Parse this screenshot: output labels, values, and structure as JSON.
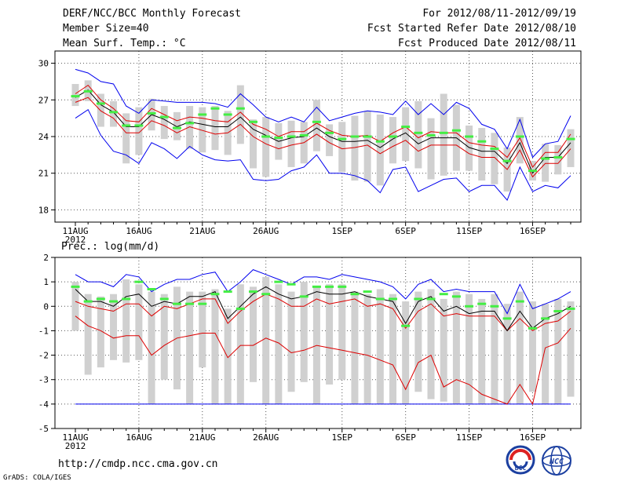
{
  "header": {
    "title": "DERF/NCC/BCC Monthly Forecast",
    "member_size": "Member Size=40",
    "variable": "Mean Surf. Temp.: °C",
    "period": "For 2012/08/11-2012/09/19",
    "started": "Fcst Started Refer Date 2012/08/10",
    "produced": "Fcst Produced Date 2012/08/11"
  },
  "footer": {
    "url": "http://cmdp.ncc.cma.gov.cn",
    "credit": "GrADS: COLA/IGES",
    "logo_bcc": "BCC",
    "logo_ncc": "NCC"
  },
  "colors": {
    "box": "#d0d0d0",
    "median": "#44ee44",
    "mean": "#000000",
    "envelope": "#0000ee",
    "spread": "#dd0000",
    "grid": "#555555"
  },
  "chart_data": [
    {
      "type": "line",
      "title": "Mean Surf. Temp.: °C",
      "ylabel": "°C",
      "ylim": [
        17,
        31
      ],
      "yticks": [
        18,
        21,
        24,
        27,
        30
      ],
      "xticks": [
        {
          "label": "11AUG",
          "day": 0
        },
        {
          "label": "16AUG",
          "day": 5
        },
        {
          "label": "21AUG",
          "day": 10
        },
        {
          "label": "26AUG",
          "day": 15
        },
        {
          "label": "1SEP",
          "day": 21
        },
        {
          "label": "6SEP",
          "day": 26
        },
        {
          "label": "11SEP",
          "day": 31
        },
        {
          "label": "16SEP",
          "day": 36
        }
      ],
      "year_label": "2012",
      "x": [
        0,
        1,
        2,
        3,
        4,
        5,
        6,
        7,
        8,
        9,
        10,
        11,
        12,
        13,
        14,
        15,
        16,
        17,
        18,
        19,
        20,
        21,
        22,
        23,
        24,
        25,
        26,
        27,
        28,
        29,
        30,
        31,
        32,
        33,
        34,
        35,
        36,
        37,
        38,
        39
      ],
      "series": [
        {
          "name": "mean",
          "values": [
            27.2,
            27.8,
            26.6,
            26.0,
            24.8,
            24.8,
            25.8,
            25.4,
            24.8,
            25.2,
            25.0,
            24.8,
            24.8,
            25.6,
            24.6,
            24.1,
            23.6,
            23.9,
            24.0,
            24.7,
            24.0,
            23.6,
            23.6,
            23.7,
            23.1,
            23.8,
            24.3,
            23.4,
            23.9,
            23.9,
            23.9,
            23.1,
            22.8,
            22.8,
            21.8,
            23.5,
            21.0,
            22.3,
            22.3,
            23.5
          ]
        },
        {
          "name": "ensemble-max",
          "values": [
            29.5,
            29.2,
            28.5,
            28.3,
            26.5,
            25.9,
            27.0,
            26.9,
            26.8,
            26.8,
            26.8,
            26.7,
            26.4,
            27.5,
            26.6,
            25.6,
            25.2,
            25.6,
            25.2,
            26.4,
            25.3,
            25.6,
            25.9,
            26.1,
            26.0,
            25.8,
            26.9,
            25.8,
            26.7,
            25.8,
            26.8,
            26.3,
            25.0,
            24.6,
            23.0,
            25.4,
            22.3,
            23.4,
            23.6,
            25.7
          ]
        },
        {
          "name": "ensemble-min",
          "values": [
            25.5,
            26.2,
            24.1,
            22.8,
            22.5,
            21.8,
            23.5,
            23.0,
            22.2,
            23.2,
            22.5,
            22.1,
            22.0,
            22.1,
            20.5,
            20.4,
            20.5,
            21.2,
            21.5,
            22.5,
            21.0,
            21.0,
            20.8,
            20.4,
            19.4,
            21.3,
            21.5,
            19.5,
            20.0,
            20.5,
            20.6,
            19.5,
            20.0,
            20.0,
            18.8,
            21.5,
            19.5,
            20.0,
            19.8,
            20.8
          ]
        },
        {
          "name": "mean-plus-sd",
          "values": [
            27.5,
            28.2,
            27.0,
            26.3,
            25.3,
            25.2,
            26.3,
            25.8,
            25.3,
            25.6,
            25.5,
            25.3,
            25.2,
            26.0,
            25.0,
            24.6,
            24.0,
            24.4,
            24.4,
            25.1,
            24.5,
            24.1,
            24.0,
            24.1,
            23.6,
            24.3,
            24.8,
            23.9,
            24.4,
            24.3,
            24.3,
            23.5,
            23.3,
            23.2,
            22.3,
            23.9,
            21.5,
            22.7,
            22.7,
            24.2
          ]
        },
        {
          "name": "mean-minus-sd",
          "values": [
            26.8,
            27.2,
            26.1,
            25.5,
            24.3,
            24.3,
            25.3,
            24.9,
            24.3,
            24.8,
            24.5,
            24.2,
            24.3,
            25.0,
            24.0,
            23.4,
            23.0,
            23.3,
            23.5,
            24.2,
            23.5,
            23.0,
            23.1,
            23.3,
            22.6,
            23.2,
            23.7,
            22.8,
            23.3,
            23.3,
            23.3,
            22.6,
            22.3,
            22.3,
            21.3,
            22.9,
            20.7,
            21.8,
            21.8,
            23.0
          ]
        },
        {
          "name": "median",
          "values": [
            27.3,
            27.7,
            26.7,
            26.0,
            24.9,
            24.9,
            25.9,
            25.6,
            24.7,
            25.1,
            25.8,
            26.3,
            25.8,
            26.3,
            25.2,
            24.0,
            23.9,
            24.0,
            24.1,
            25.2,
            24.3,
            23.8,
            24.0,
            24.0,
            23.6,
            24.0,
            24.8,
            24.3,
            24.1,
            24.3,
            24.5,
            24.0,
            23.6,
            23.0,
            22.0,
            24.0,
            21.2,
            22.2,
            22.3,
            23.8
          ]
        },
        {
          "name": "box-top",
          "values": [
            28.3,
            28.6,
            27.5,
            26.9,
            25.9,
            26.4,
            27.1,
            26.5,
            26.0,
            26.5,
            26.4,
            26.5,
            26.1,
            28.2,
            25.4,
            25.6,
            25.1,
            25.3,
            25.2,
            27.0,
            25.0,
            25.2,
            25.7,
            26.1,
            25.8,
            25.6,
            26.4,
            26.9,
            25.5,
            27.5,
            26.6,
            24.9,
            24.7,
            24.3,
            23.1,
            25.6,
            22.0,
            23.4,
            23.3,
            24.6
          ]
        },
        {
          "name": "box-bottom",
          "values": [
            26.5,
            26.9,
            24.8,
            24.8,
            21.8,
            22.5,
            24.5,
            23.8,
            23.7,
            23.0,
            22.7,
            22.9,
            22.5,
            23.4,
            21.4,
            20.7,
            22.1,
            21.5,
            21.8,
            22.8,
            22.4,
            21.1,
            20.4,
            20.3,
            20.0,
            21.8,
            22.0,
            21.4,
            20.5,
            20.8,
            21.2,
            21.2,
            20.4,
            20.1,
            19.5,
            21.8,
            20.4,
            20.3,
            20.9,
            21.5
          ]
        }
      ]
    },
    {
      "type": "line",
      "title": "Prec.: log(mm/d)",
      "ylabel": "log(mm/d)",
      "ylim": [
        -5,
        2
      ],
      "yticks": [
        -5,
        -4,
        -3,
        -2,
        -1,
        0,
        1,
        2
      ],
      "xticks": [
        {
          "label": "11AUG",
          "day": 0
        },
        {
          "label": "16AUG",
          "day": 5
        },
        {
          "label": "21AUG",
          "day": 10
        },
        {
          "label": "26AUG",
          "day": 15
        },
        {
          "label": "1SEP",
          "day": 21
        },
        {
          "label": "6SEP",
          "day": 26
        },
        {
          "label": "11SEP",
          "day": 31
        },
        {
          "label": "16SEP",
          "day": 36
        }
      ],
      "year_label": "2012",
      "x": [
        0,
        1,
        2,
        3,
        4,
        5,
        6,
        7,
        8,
        9,
        10,
        11,
        12,
        13,
        14,
        15,
        16,
        17,
        18,
        19,
        20,
        21,
        22,
        23,
        24,
        25,
        26,
        27,
        28,
        29,
        30,
        31,
        32,
        33,
        34,
        35,
        36,
        37,
        38,
        39
      ],
      "series": [
        {
          "name": "mean",
          "values": [
            0.7,
            0.2,
            0.2,
            0.0,
            0.4,
            0.5,
            0.0,
            0.2,
            0.1,
            0.4,
            0.4,
            0.6,
            -0.5,
            0.0,
            0.5,
            0.8,
            0.5,
            0.3,
            0.4,
            0.6,
            0.5,
            0.5,
            0.6,
            0.4,
            0.3,
            0.2,
            -0.7,
            0.2,
            0.4,
            -0.2,
            0.0,
            -0.3,
            -0.2,
            -0.2,
            -1.0,
            -0.2,
            -0.9,
            -0.5,
            -0.3,
            0.0
          ]
        },
        {
          "name": "ensemble-max",
          "values": [
            1.3,
            1.0,
            1.0,
            0.8,
            1.3,
            1.2,
            0.6,
            0.9,
            1.1,
            1.1,
            1.3,
            1.4,
            0.6,
            1.0,
            1.5,
            1.3,
            1.1,
            0.9,
            1.2,
            1.2,
            1.1,
            1.3,
            1.2,
            1.1,
            1.0,
            0.8,
            0.3,
            0.9,
            1.1,
            0.6,
            0.7,
            0.6,
            0.6,
            0.6,
            -0.3,
            0.9,
            -0.1,
            0.1,
            0.3,
            0.6
          ]
        },
        {
          "name": "ensemble-min",
          "values": [
            -4.0,
            -4.0,
            -4.0,
            -4.0,
            -4.0,
            -4.0,
            -4.0,
            -4.0,
            -4.0,
            -4.0,
            -4.0,
            -4.0,
            -4.0,
            -4.0,
            -4.0,
            -4.0,
            -4.0,
            -4.0,
            -4.0,
            -4.0,
            -4.0,
            -4.0,
            -4.0,
            -4.0,
            -4.0,
            -4.0,
            -4.0,
            -4.0,
            -4.0,
            -4.0,
            -4.0,
            -4.0,
            -4.0,
            -4.0,
            -4.0,
            -4.0,
            -4.0,
            -4.0,
            -4.0,
            -4.0
          ]
        },
        {
          "name": "mean-plus-sd",
          "values": [
            0.2,
            0.0,
            -0.1,
            -0.2,
            0.1,
            0.1,
            -0.4,
            0.0,
            -0.1,
            0.1,
            0.3,
            0.3,
            -0.7,
            -0.2,
            0.2,
            0.5,
            0.3,
            0.0,
            0.0,
            0.3,
            0.1,
            0.2,
            0.3,
            0.0,
            0.1,
            -0.1,
            -0.9,
            -0.2,
            0.1,
            -0.4,
            -0.3,
            -0.4,
            -0.4,
            -0.4,
            -1.0,
            -0.5,
            -1.0,
            -0.7,
            -0.6,
            -0.2
          ]
        },
        {
          "name": "mean-minus-sd",
          "values": [
            -0.4,
            -0.8,
            -1.0,
            -1.3,
            -1.2,
            -1.2,
            -2.0,
            -1.6,
            -1.3,
            -1.2,
            -1.1,
            -1.1,
            -2.1,
            -1.6,
            -1.6,
            -1.3,
            -1.5,
            -1.9,
            -1.8,
            -1.6,
            -1.7,
            -1.8,
            -1.9,
            -2.0,
            -2.2,
            -2.4,
            -3.4,
            -2.3,
            -2.0,
            -3.3,
            -3.0,
            -3.2,
            -3.6,
            -3.8,
            -4.0,
            -3.2,
            -4.0,
            -1.7,
            -1.5,
            -0.9
          ]
        },
        {
          "name": "median",
          "values": [
            0.8,
            0.2,
            0.3,
            0.2,
            0.3,
            1.0,
            0.7,
            0.3,
            0.1,
            0.1,
            0.1,
            0.5,
            0.6,
            -0.1,
            0.6,
            0.5,
            1.0,
            0.9,
            0.4,
            0.8,
            0.8,
            0.8,
            0.5,
            0.6,
            0.3,
            0.3,
            -0.8,
            0.3,
            0.3,
            0.5,
            0.4,
            0.0,
            0.1,
            0.0,
            -0.5,
            0.2,
            -0.9,
            -0.5,
            -0.2,
            -0.1
          ]
        },
        {
          "name": "box-top",
          "values": [
            1.0,
            0.5,
            0.4,
            0.5,
            1.1,
            0.9,
            0.6,
            0.5,
            0.8,
            0.6,
            0.6,
            0.7,
            -0.1,
            0.9,
            0.8,
            1.2,
            0.9,
            0.6,
            1.0,
            0.8,
            0.9,
            0.9,
            0.6,
            0.5,
            0.7,
            0.5,
            0.2,
            0.6,
            0.7,
            0.3,
            0.6,
            0.5,
            0.3,
            0.5,
            0.1,
            0.6,
            0.2,
            0.1,
            0.3,
            0.2
          ]
        },
        {
          "name": "box-bottom",
          "values": [
            -1.0,
            -2.8,
            -2.5,
            -2.2,
            -2.3,
            -2.2,
            -4.0,
            -3.0,
            -3.4,
            -4.0,
            -2.5,
            -4.0,
            -4.0,
            -4.0,
            -3.1,
            -4.0,
            -4.0,
            -3.5,
            -3.1,
            -4.0,
            -3.2,
            -3.0,
            -4.0,
            -4.0,
            -4.0,
            -4.0,
            -4.0,
            -3.5,
            -3.8,
            -3.9,
            -4.0,
            -4.0,
            -4.0,
            -4.0,
            -4.0,
            -4.0,
            -3.5,
            -4.0,
            -4.0,
            -3.7
          ]
        }
      ]
    }
  ]
}
